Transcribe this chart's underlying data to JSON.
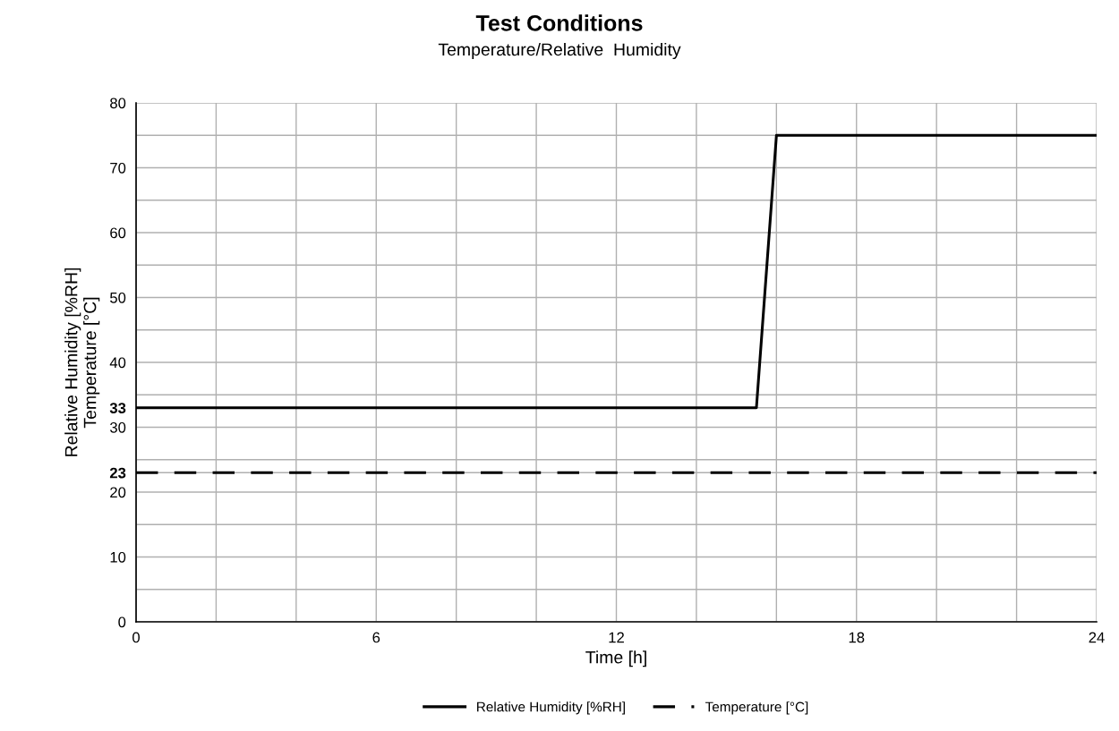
{
  "chart_data": {
    "type": "line",
    "title": "Test Conditions",
    "subtitle": "Temperature/Relative  Humidity",
    "xlabel": "Time [h]",
    "ylabel": "Relative Humidity [%RH]\nTemperature [°C]",
    "series": [
      {
        "name": "Relative Humidity [%RH]",
        "color": "#000000",
        "x": [
          0,
          15.5,
          16,
          24
        ],
        "values": [
          33,
          33,
          75,
          75
        ],
        "line_style": "solid"
      },
      {
        "name": "Temperature [°C]",
        "color": "#000000",
        "x": [
          0,
          24
        ],
        "values": [
          23,
          23
        ],
        "line_style": "dashed"
      }
    ],
    "xlim": [
      0,
      24
    ],
    "ylim": [
      0,
      80
    ],
    "xticks": [
      0,
      {
        "value": 2,
        "label": null
      },
      {
        "value": 4,
        "label": null
      },
      6,
      {
        "value": 8,
        "label": null
      },
      {
        "value": 10,
        "label": null
      },
      12,
      {
        "value": 14,
        "label": null
      },
      {
        "value": 16,
        "label": null
      },
      18,
      {
        "value": 20,
        "label": null
      },
      {
        "value": 22,
        "label": null
      },
      24
    ],
    "yticks": [
      0,
      {
        "value": 5,
        "label": null
      },
      10,
      {
        "value": 15,
        "label": null
      },
      20,
      {
        "value": 23,
        "label": "23"
      },
      {
        "value": 25,
        "label": null
      },
      30,
      {
        "value": 33,
        "label": "33"
      },
      {
        "value": 35,
        "label": null
      },
      40,
      {
        "value": 45,
        "label": null
      },
      50,
      {
        "value": 55,
        "label": null
      },
      60,
      {
        "value": 65,
        "label": null
      },
      70,
      {
        "value": 75,
        "label": null
      },
      80
    ],
    "grid": true,
    "legend": "bottom",
    "marker": "none"
  }
}
